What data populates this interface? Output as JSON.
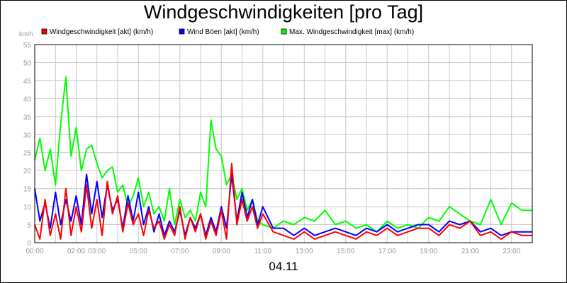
{
  "chart_data": {
    "type": "line",
    "title": "Windgeschwindigkeiten [pro Tag]",
    "unit_label": "km/h",
    "date_label": "04.11",
    "ylim": [
      0,
      55
    ],
    "yticks": [
      0,
      5,
      10,
      15,
      20,
      25,
      30,
      35,
      40,
      45,
      50,
      55
    ],
    "xlim": [
      0,
      24
    ],
    "xtick_hours": [
      0,
      2,
      3,
      5,
      7,
      9,
      11,
      13,
      15,
      17,
      19,
      21,
      23
    ],
    "xtick_labels": [
      "00:00",
      "02:00",
      "03:00",
      "05:00",
      "07:00",
      "09:00",
      "11:00",
      "13:00",
      "15:00",
      "17:00",
      "19:00",
      "21:00",
      "23:00"
    ],
    "grid": true,
    "legend_position": "top-left",
    "series": [
      {
        "name": "Windgeschwindigkeit [akt] (km/h)",
        "color": "#ff0000",
        "x": [
          0,
          0.25,
          0.5,
          0.75,
          1,
          1.25,
          1.5,
          1.75,
          2,
          2.25,
          2.5,
          2.75,
          3,
          3.25,
          3.5,
          3.75,
          4,
          4.25,
          4.5,
          4.75,
          5,
          5.25,
          5.5,
          5.75,
          6,
          6.25,
          6.5,
          6.75,
          7,
          7.25,
          7.5,
          7.75,
          8,
          8.25,
          8.5,
          8.75,
          9,
          9.25,
          9.5,
          9.75,
          10,
          10.25,
          10.5,
          10.75,
          11,
          11.5,
          12,
          12.5,
          13,
          13.5,
          14,
          14.5,
          15,
          15.5,
          16,
          16.5,
          17,
          17.5,
          18,
          18.5,
          19,
          19.5,
          20,
          20.5,
          21,
          21.5,
          22,
          22.5,
          23,
          23.5,
          24
        ],
        "y": [
          5,
          1,
          12,
          2,
          8,
          1,
          15,
          2,
          10,
          3,
          16,
          4,
          12,
          2,
          17,
          8,
          13,
          3,
          11,
          5,
          8,
          2,
          9,
          4,
          6,
          1,
          5,
          2,
          10,
          1,
          7,
          3,
          8,
          1,
          6,
          2,
          9,
          1,
          22,
          5,
          12,
          6,
          10,
          4,
          8,
          3,
          2,
          1,
          3,
          1,
          2,
          3,
          2,
          1,
          3,
          2,
          4,
          2,
          3,
          4,
          4,
          2,
          5,
          4,
          6,
          2,
          3,
          1,
          3,
          2,
          2
        ]
      },
      {
        "name": "Wind Böen [akt] (km/h)",
        "color": "#0000ff",
        "x": [
          0,
          0.25,
          0.5,
          0.75,
          1,
          1.25,
          1.5,
          1.75,
          2,
          2.25,
          2.5,
          2.75,
          3,
          3.25,
          3.5,
          3.75,
          4,
          4.25,
          4.5,
          4.75,
          5,
          5.25,
          5.5,
          5.75,
          6,
          6.25,
          6.5,
          6.75,
          7,
          7.25,
          7.5,
          7.75,
          8,
          8.25,
          8.5,
          8.75,
          9,
          9.25,
          9.5,
          9.75,
          10,
          10.25,
          10.5,
          10.75,
          11,
          11.5,
          12,
          12.5,
          13,
          13.5,
          14,
          14.5,
          15,
          15.5,
          16,
          16.5,
          17,
          17.5,
          18,
          18.5,
          19,
          19.5,
          20,
          20.5,
          21,
          21.5,
          22,
          22.5,
          23,
          23.5,
          24
        ],
        "y": [
          15,
          6,
          11,
          4,
          14,
          5,
          12,
          6,
          13,
          5,
          19,
          8,
          17,
          7,
          16,
          9,
          12,
          4,
          13,
          6,
          14,
          5,
          10,
          3,
          8,
          2,
          6,
          3,
          9,
          2,
          7,
          4,
          8,
          2,
          7,
          3,
          10,
          4,
          19,
          6,
          14,
          7,
          12,
          5,
          10,
          4,
          4,
          2,
          4,
          2,
          3,
          4,
          3,
          2,
          4,
          3,
          5,
          3,
          4,
          5,
          5,
          3,
          6,
          5,
          6,
          3,
          4,
          2,
          3,
          3,
          3
        ]
      },
      {
        "name": "Max. Windgeschwindigkeit [max] (km/h)",
        "color": "#00ff00",
        "x": [
          0,
          0.25,
          0.5,
          0.75,
          1,
          1.25,
          1.5,
          1.75,
          2,
          2.25,
          2.5,
          2.75,
          3,
          3.25,
          3.5,
          3.75,
          4,
          4.25,
          4.5,
          4.75,
          5,
          5.25,
          5.5,
          5.75,
          6,
          6.25,
          6.5,
          6.75,
          7,
          7.25,
          7.5,
          7.75,
          8,
          8.25,
          8.5,
          8.75,
          9,
          9.25,
          9.5,
          9.75,
          10,
          10.25,
          10.5,
          10.75,
          11,
          11.5,
          12,
          12.5,
          13,
          13.5,
          14,
          14.5,
          15,
          15.5,
          16,
          16.5,
          17,
          17.5,
          18,
          18.5,
          19,
          19.5,
          20,
          20.5,
          21,
          21.5,
          22,
          22.5,
          23,
          23.5,
          24
        ],
        "y": [
          23,
          29,
          20,
          26,
          16,
          33,
          46,
          24,
          32,
          20,
          26,
          27,
          22,
          18,
          20,
          21,
          14,
          16,
          10,
          13,
          18,
          10,
          14,
          8,
          10,
          6,
          15,
          5,
          12,
          7,
          9,
          6,
          14,
          10,
          34,
          26,
          24,
          16,
          19,
          12,
          15,
          9,
          12,
          6,
          5,
          4,
          6,
          5,
          7,
          6,
          9,
          5,
          6,
          4,
          5,
          3,
          6,
          4,
          5,
          4,
          7,
          6,
          10,
          8,
          6,
          5,
          12,
          5,
          11,
          9,
          9
        ]
      }
    ]
  }
}
